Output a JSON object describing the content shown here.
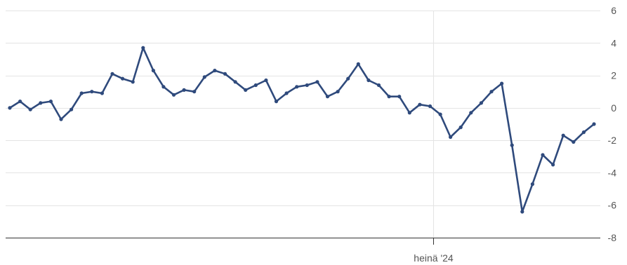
{
  "chart_data": {
    "type": "line",
    "title": "",
    "xlabel": "",
    "ylabel": "",
    "ylim": [
      -8,
      6
    ],
    "y_ticks": [
      6,
      4,
      2,
      0,
      -2,
      -4,
      -6,
      -8
    ],
    "x_tick_labels": [
      {
        "label": "heinä '24",
        "index": 41
      }
    ],
    "grid": true,
    "y_axis_side": "right",
    "line_color": "#2f4a7c",
    "grid_color": "#e4e4e4",
    "series": [
      {
        "values": [
          0.0,
          0.4,
          -0.1,
          0.3,
          0.4,
          -0.7,
          -0.1,
          0.9,
          1.0,
          0.9,
          2.1,
          1.8,
          1.6,
          3.7,
          2.3,
          1.3,
          0.8,
          1.1,
          1.0,
          1.9,
          2.3,
          2.1,
          1.6,
          1.1,
          1.4,
          1.7,
          0.4,
          0.9,
          1.3,
          1.4,
          1.6,
          0.7,
          1.0,
          1.8,
          2.7,
          1.7,
          1.4,
          0.7,
          0.7,
          -0.3,
          0.2,
          0.1,
          -0.4,
          -1.8,
          -1.2,
          -0.3,
          0.3,
          1.0,
          1.5,
          -2.3,
          -6.4,
          -4.7,
          -2.9,
          -3.5,
          -1.7,
          -2.1,
          -1.5,
          -1.0
        ]
      }
    ]
  }
}
